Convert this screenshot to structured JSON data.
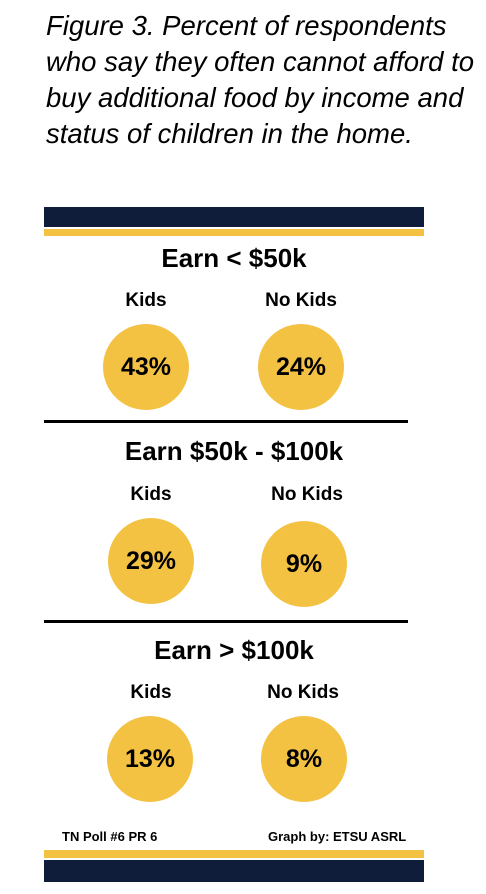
{
  "title": "Figure 3. Percent of respondents who say they often cannot afford to buy additional food by income and status of children in the home.",
  "colors": {
    "navy": "#0f1d3a",
    "gold": "#f4c243"
  },
  "chart_data": {
    "type": "table",
    "title": "Figure 3. Percent of respondents who say they often cannot afford to buy additional food by income and status of children in the home.",
    "categories": [
      "Kids",
      "No Kids"
    ],
    "unit": "%",
    "groups": [
      {
        "name": "Earn < $50k",
        "values": [
          43,
          24
        ],
        "labels": [
          "43%",
          "24%"
        ]
      },
      {
        "name": "Earn $50k - $100k",
        "values": [
          29,
          9
        ],
        "labels": [
          "29%",
          "9%"
        ]
      },
      {
        "name": "Earn > $100k",
        "values": [
          13,
          8
        ],
        "labels": [
          "13%",
          "8%"
        ]
      }
    ]
  },
  "footer": {
    "source": "TN Poll #6 PR 6",
    "credit": "Graph by: ETSU ASRL"
  }
}
